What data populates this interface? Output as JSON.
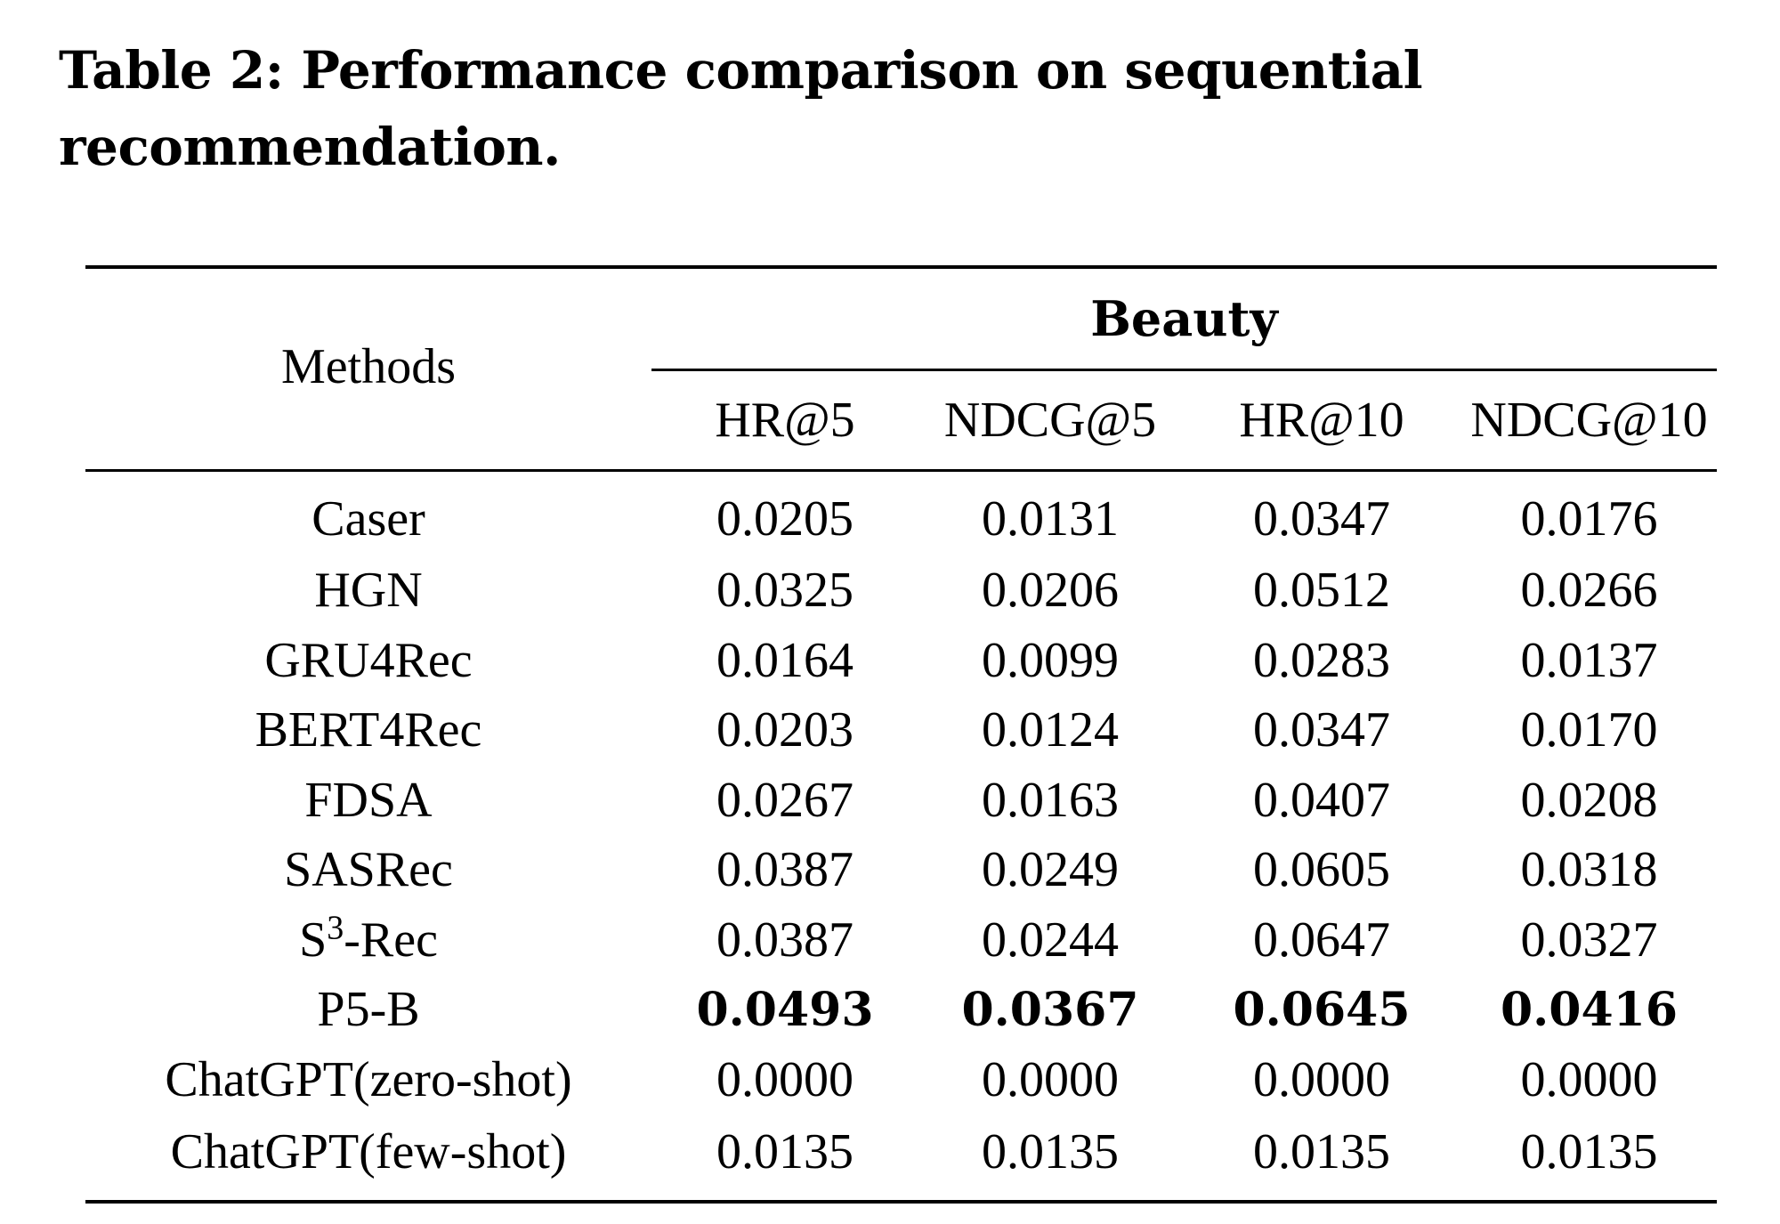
{
  "caption": "Table 2: Performance comparison on sequential recommendation.",
  "table": {
    "row_header": "Methods",
    "group": "Beauty",
    "columns": [
      "HR@5",
      "NDCG@5",
      "HR@10",
      "NDCG@10"
    ],
    "rows": [
      {
        "method": "Caser",
        "values": [
          "0.0205",
          "0.0131",
          "0.0347",
          "0.0176"
        ],
        "bold": false
      },
      {
        "method": "HGN",
        "values": [
          "0.0325",
          "0.0206",
          "0.0512",
          "0.0266"
        ],
        "bold": false
      },
      {
        "method": "GRU4Rec",
        "values": [
          "0.0164",
          "0.0099",
          "0.0283",
          "0.0137"
        ],
        "bold": false
      },
      {
        "method": "BERT4Rec",
        "values": [
          "0.0203",
          "0.0124",
          "0.0347",
          "0.0170"
        ],
        "bold": false
      },
      {
        "method": "FDSA",
        "values": [
          "0.0267",
          "0.0163",
          "0.0407",
          "0.0208"
        ],
        "bold": false
      },
      {
        "method": "SASRec",
        "values": [
          "0.0387",
          "0.0249",
          "0.0605",
          "0.0318"
        ],
        "bold": false
      },
      {
        "method_base": "S",
        "method_sup": "3",
        "method_suffix": "-Rec",
        "values": [
          "0.0387",
          "0.0244",
          "0.0647",
          "0.0327"
        ],
        "bold": false
      },
      {
        "method": "P5-B",
        "values": [
          "0.0493",
          "0.0367",
          "0.0645",
          "0.0416"
        ],
        "bold": true
      },
      {
        "method": "ChatGPT(zero-shot)",
        "values": [
          "0.0000",
          "0.0000",
          "0.0000",
          "0.0000"
        ],
        "bold": false
      },
      {
        "method": "ChatGPT(few-shot)",
        "values": [
          "0.0135",
          "0.0135",
          "0.0135",
          "0.0135"
        ],
        "bold": false
      }
    ]
  }
}
